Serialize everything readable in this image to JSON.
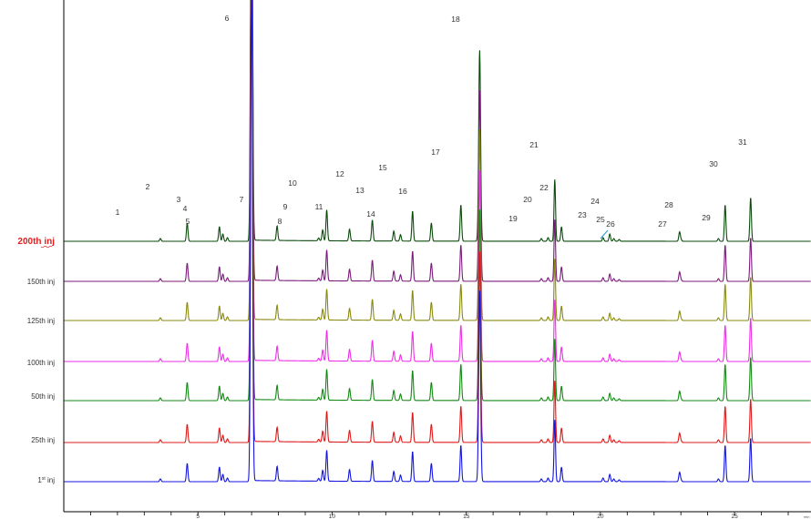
{
  "chart_data": {
    "type": "line",
    "xlabel": "",
    "x_unit": "min",
    "ylabel": "",
    "xlim": [
      0.0,
      27.85
    ],
    "x_ticks": [
      5,
      10,
      15,
      20,
      25
    ],
    "grid": false,
    "series": [
      {
        "name": "200th inj",
        "color": "#0b4a0b",
        "highlight": true
      },
      {
        "name": "150th inj",
        "color": "#7b1a7b"
      },
      {
        "name": "125th inj",
        "color": "#8a8a10"
      },
      {
        "name": "100th inj",
        "color": "#ee2ee8"
      },
      {
        "name": "50th inj",
        "color": "#138a13"
      },
      {
        "name": "25th inj",
        "color": "#e01818"
      },
      {
        "name": "1st inj",
        "color": "#1414e0",
        "sup": "st",
        "base": "1"
      }
    ],
    "peaks": [
      {
        "id": "1",
        "rt": 3.6,
        "height": 3
      },
      {
        "id": "2",
        "rt": 4.6,
        "height": 20
      },
      {
        "id": "3",
        "rt": 5.8,
        "height": 16
      },
      {
        "id": "4",
        "rt": 5.93,
        "height": 8
      },
      {
        "id": "5",
        "rt": 6.1,
        "height": 4
      },
      {
        "id": "6",
        "rt": 7.0,
        "height": 560
      },
      {
        "id": "7",
        "rt": 7.95,
        "height": 16
      },
      {
        "id": "8",
        "rt": 9.5,
        "height": 3
      },
      {
        "id": "9",
        "rt": 9.65,
        "height": 12
      },
      {
        "id": "10",
        "rt": 9.8,
        "height": 34
      },
      {
        "id": "11",
        "rt": 10.65,
        "height": 13
      },
      {
        "id": "12",
        "rt": 11.5,
        "height": 23
      },
      {
        "id": "13",
        "rt": 12.3,
        "height": 11
      },
      {
        "id": "14",
        "rt": 12.55,
        "height": 7
      },
      {
        "id": "15",
        "rt": 13.0,
        "height": 33
      },
      {
        "id": "16",
        "rt": 13.7,
        "height": 20
      },
      {
        "id": "17",
        "rt": 14.8,
        "height": 40
      },
      {
        "id": "18",
        "rt": 15.5,
        "height": 210
      },
      {
        "id": "19",
        "rt": 17.8,
        "height": 3
      },
      {
        "id": "20",
        "rt": 18.05,
        "height": 4
      },
      {
        "id": "21",
        "rt": 18.3,
        "height": 68
      },
      {
        "id": "22",
        "rt": 18.55,
        "height": 16
      },
      {
        "id": "23",
        "rt": 20.1,
        "height": 4
      },
      {
        "id": "24",
        "rt": 20.35,
        "height": 8
      },
      {
        "id": "25",
        "rt": 20.5,
        "height": 3
      },
      {
        "id": "26",
        "rt": 20.7,
        "height": 2
      },
      {
        "id": "27",
        "rt": 22.95,
        "height": 10
      },
      {
        "id": "28",
        "rt": 23.0,
        "height": 2
      },
      {
        "id": "29",
        "rt": 24.4,
        "height": 3
      },
      {
        "id": "30",
        "rt": 24.65,
        "height": 40
      },
      {
        "id": "31",
        "rt": 25.6,
        "height": 48
      }
    ]
  }
}
